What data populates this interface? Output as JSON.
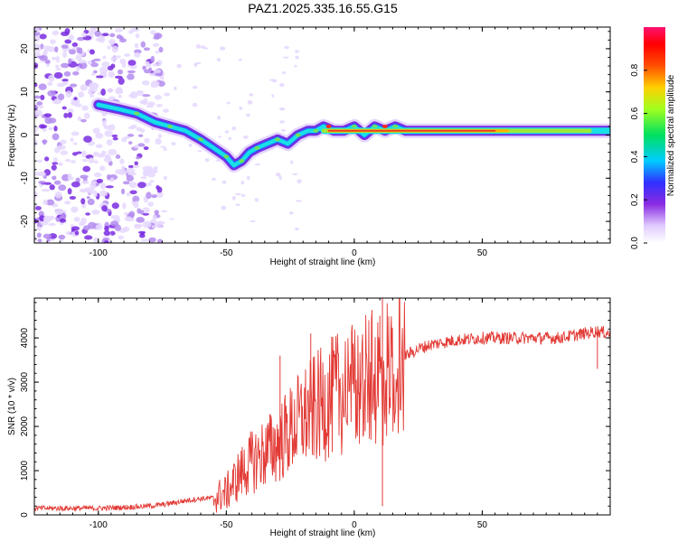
{
  "title": "PAZ1.2025.335.16.55.G15",
  "colors": {
    "snr_line": "#e23a35",
    "track_core": "#e8382a",
    "cyan": "#18e0e6",
    "green": "#6fe05a",
    "purple": "#7a2be0",
    "light_purple": "#d9c2ff"
  },
  "chart_data": [
    {
      "type": "heatmap",
      "name": "spectrogram",
      "title": "PAZ1.2025.335.16.55.G15",
      "xlabel": "Height of straight line (km)",
      "ylabel": "Frequency (Hz)",
      "xlim": [
        -125,
        100
      ],
      "ylim": [
        -25,
        25
      ],
      "xticks": [
        -100,
        -50,
        0,
        50
      ],
      "yticks": [
        -20,
        -10,
        0,
        10,
        20
      ],
      "track": {
        "description": "dominant frequency ridge",
        "x": [
          -100,
          -92,
          -85,
          -78,
          -72,
          -66,
          -60,
          -55,
          -50,
          -47,
          -44,
          -41,
          -38,
          -34,
          -30,
          -26,
          -22,
          -18,
          -15,
          -12,
          -8,
          -4,
          0,
          4,
          8,
          12,
          16,
          20,
          30,
          40,
          50,
          60,
          70,
          80,
          90,
          100
        ],
        "y": [
          7,
          6,
          5,
          3,
          2,
          1,
          -1,
          -3,
          -5,
          -7,
          -6,
          -4,
          -3,
          -2,
          -1,
          -2,
          0,
          1,
          1,
          2,
          1,
          1,
          2,
          0,
          2,
          1,
          2,
          1,
          1,
          1,
          1,
          1,
          1,
          1,
          1,
          1
        ]
      },
      "noise_region_x": [
        -125,
        -75
      ],
      "colorbar": {
        "label": "Normalized spectral amplitude",
        "range": [
          0,
          1
        ],
        "ticks": [
          "0.0",
          "0.2",
          "0.4",
          "0.6",
          "0.8"
        ]
      }
    },
    {
      "type": "line",
      "name": "snr",
      "xlabel": "Height of straight line (km)",
      "ylabel": "SNR (10 * v/v)",
      "xlim": [
        -125,
        100
      ],
      "ylim": [
        0,
        4900
      ],
      "xticks": [
        -100,
        -50,
        0,
        50
      ],
      "yticks": [
        0,
        1000,
        2000,
        3000,
        4000
      ],
      "series": [
        {
          "name": "SNR",
          "x": [
            -125,
            -110,
            -100,
            -90,
            -80,
            -75,
            -70,
            -65,
            -60,
            -55,
            -50,
            -45,
            -40,
            -35,
            -30,
            -25,
            -20,
            -15,
            -10,
            -5,
            0,
            5,
            8,
            10,
            11,
            12,
            15,
            20,
            25,
            30,
            35,
            40,
            50,
            60,
            70,
            80,
            90,
            95,
            100
          ],
          "y": [
            150,
            150,
            150,
            170,
            200,
            230,
            280,
            330,
            370,
            380,
            500,
            900,
            1200,
            1400,
            1600,
            1900,
            2200,
            2400,
            2600,
            2800,
            2900,
            3000,
            3100,
            3200,
            3000,
            3300,
            3400,
            3600,
            3750,
            3850,
            3900,
            3950,
            4000,
            4000,
            4000,
            4000,
            4100,
            4150,
            4100
          ]
        }
      ],
      "spikes": [
        {
          "x": -17,
          "y": 4100
        },
        {
          "x": -29,
          "y": 3600
        },
        {
          "x": 11,
          "y": 4900
        },
        {
          "x": 10,
          "y": 4500
        },
        {
          "x": 11,
          "y": 200
        },
        {
          "x": 95,
          "y": 3300
        }
      ]
    }
  ]
}
